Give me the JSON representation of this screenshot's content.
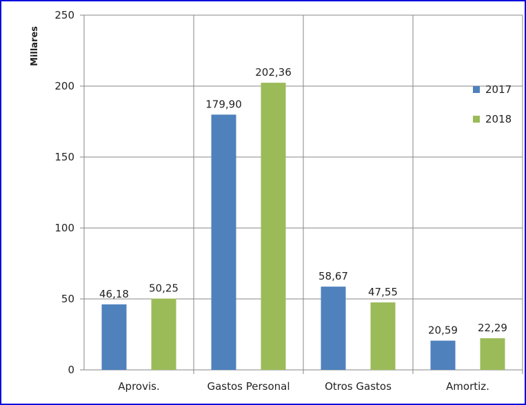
{
  "chart_data": {
    "type": "bar",
    "ylabel": "Millares",
    "ylim": [
      0,
      250
    ],
    "yticks": [
      "0",
      "50",
      "100",
      "150",
      "200",
      "250"
    ],
    "categories": [
      "Aprovis.",
      "Gastos Personal",
      "Otros Gastos",
      "Amortiz."
    ],
    "series": [
      {
        "name": "2017",
        "color": "#4f81bd",
        "values": [
          46.18,
          179.9,
          58.67,
          20.59
        ],
        "labels": [
          "46,18",
          "179,90",
          "58,67",
          "20,59"
        ]
      },
      {
        "name": "2018",
        "color": "#9bbb59",
        "values": [
          50.25,
          202.36,
          47.55,
          22.29
        ],
        "labels": [
          "50,25",
          "202,36",
          "47,55",
          "22,29"
        ]
      }
    ],
    "grid": true,
    "legend_position": "right"
  }
}
